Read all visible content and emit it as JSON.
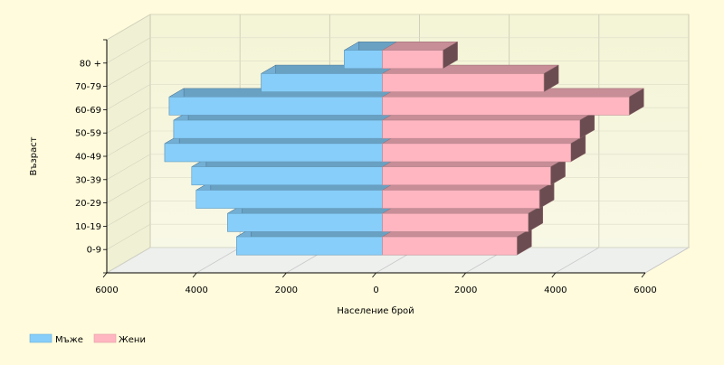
{
  "chart_data": {
    "type": "bar",
    "orientation": "horizontal",
    "style": "3d-population-pyramid",
    "categories": [
      "0-9",
      "10-19",
      "20-29",
      "30-39",
      "40-49",
      "50-59",
      "60-69",
      "70-79",
      "80 +"
    ],
    "series": [
      {
        "name": "Мъже",
        "values": [
          3250,
          3450,
          4150,
          4250,
          4850,
          4650,
          4750,
          2700,
          850
        ],
        "color": "#87cefa",
        "side": "left"
      },
      {
        "name": "Жени",
        "values": [
          3000,
          3250,
          3500,
          3750,
          4200,
          4400,
          5500,
          3600,
          1350
        ],
        "color": "#ffb6c1",
        "side": "right"
      }
    ],
    "xlabel": "Население брой",
    "ylabel": "Възраст",
    "xlim": [
      -6000,
      6000
    ],
    "xticks": [
      -6000,
      -4000,
      -2000,
      0,
      2000,
      4000,
      6000
    ],
    "xtick_labels": [
      "6000",
      "4000",
      "2000",
      "0",
      "2000",
      "4000",
      "6000"
    ],
    "grid": true,
    "legend_position": "bottom-left"
  },
  "legend": {
    "items": [
      {
        "label": "Мъже",
        "color": "#87cefa"
      },
      {
        "label": "Жени",
        "color": "#ffb6c1"
      }
    ]
  },
  "axis": {
    "xlabel": "Население брой",
    "ylabel": "Възраст"
  }
}
